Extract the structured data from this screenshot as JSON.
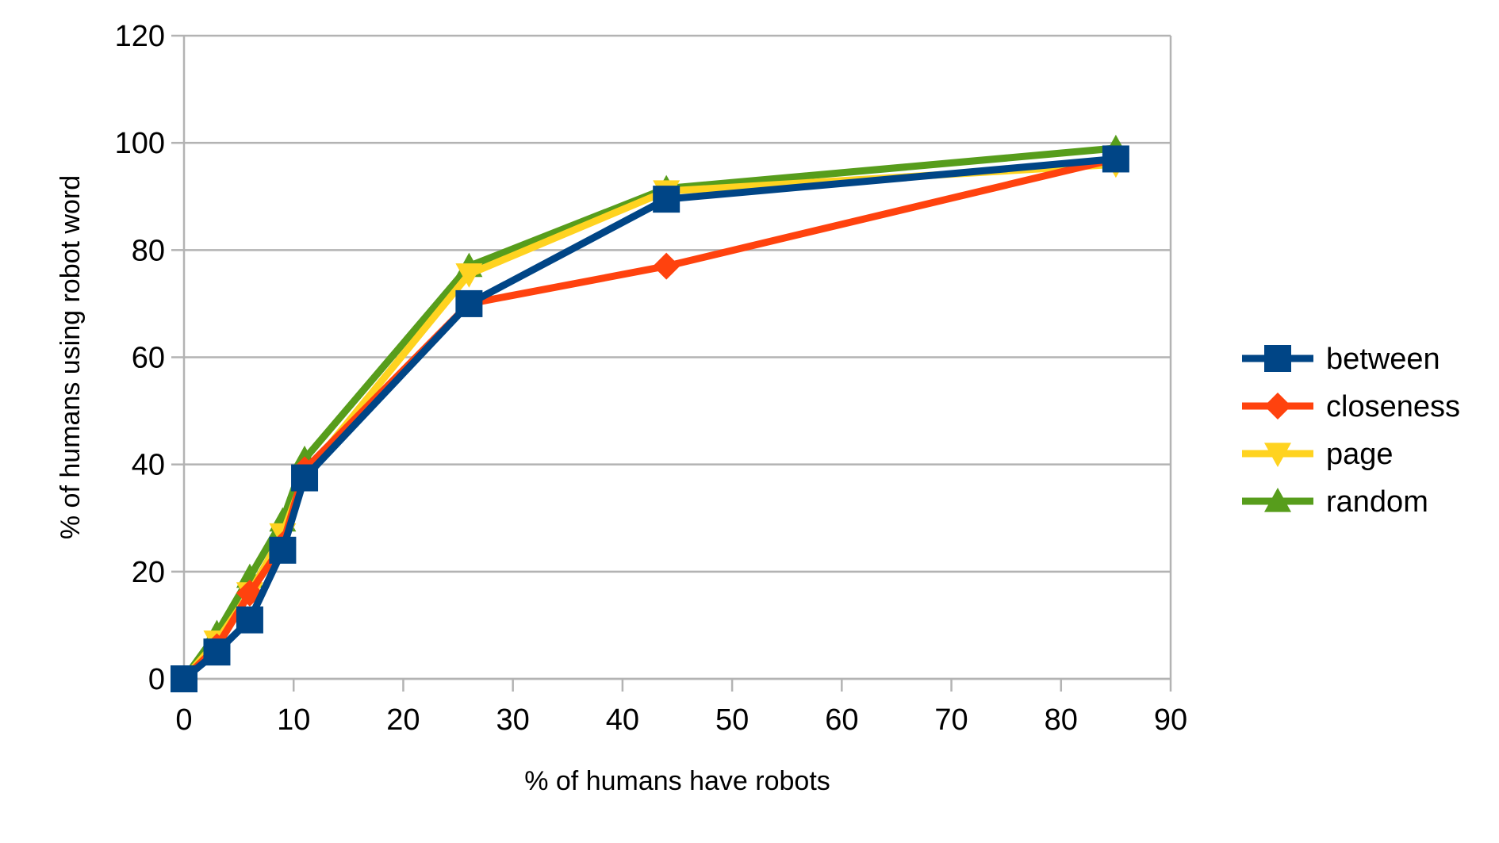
{
  "chart_data": {
    "type": "line",
    "title": "",
    "xlabel": "% of humans have robots",
    "ylabel": "% of humans using robot word",
    "xlim": [
      0,
      90
    ],
    "ylim": [
      0,
      120
    ],
    "x_ticks": [
      "0",
      "10",
      "20",
      "30",
      "40",
      "50",
      "60",
      "70",
      "80",
      "90"
    ],
    "y_ticks": [
      "0",
      "20",
      "40",
      "60",
      "80",
      "100",
      "120"
    ],
    "grid": "horizontal",
    "legend_position": "right",
    "series": [
      {
        "name": "between",
        "color": "#004586",
        "marker": "square",
        "points": [
          [
            0,
            0
          ],
          [
            3,
            5
          ],
          [
            6,
            11
          ],
          [
            9,
            24
          ],
          [
            11,
            37.5
          ],
          [
            26,
            70
          ],
          [
            44,
            89.5
          ],
          [
            85,
            97
          ]
        ]
      },
      {
        "name": "closeness",
        "color": "#ff420e",
        "marker": "diamond",
        "points": [
          [
            0,
            0
          ],
          [
            3,
            6
          ],
          [
            6,
            16
          ],
          [
            9,
            25
          ],
          [
            11,
            39
          ],
          [
            26,
            70
          ],
          [
            44,
            77
          ],
          [
            85,
            97
          ]
        ]
      },
      {
        "name": "page",
        "color": "#ffd320",
        "marker": "triangle-down",
        "points": [
          [
            0,
            0
          ],
          [
            3,
            7
          ],
          [
            6,
            16
          ],
          [
            9,
            27
          ],
          [
            11,
            38
          ],
          [
            26,
            75.5
          ],
          [
            44,
            91
          ],
          [
            85,
            96
          ]
        ]
      },
      {
        "name": "random",
        "color": "#579d1c",
        "marker": "triangle-up",
        "points": [
          [
            0,
            0
          ],
          [
            3,
            8.5
          ],
          [
            6,
            19
          ],
          [
            9,
            29.5
          ],
          [
            11,
            41
          ],
          [
            26,
            77
          ],
          [
            44,
            91.5
          ],
          [
            85,
            99
          ]
        ]
      }
    ]
  }
}
